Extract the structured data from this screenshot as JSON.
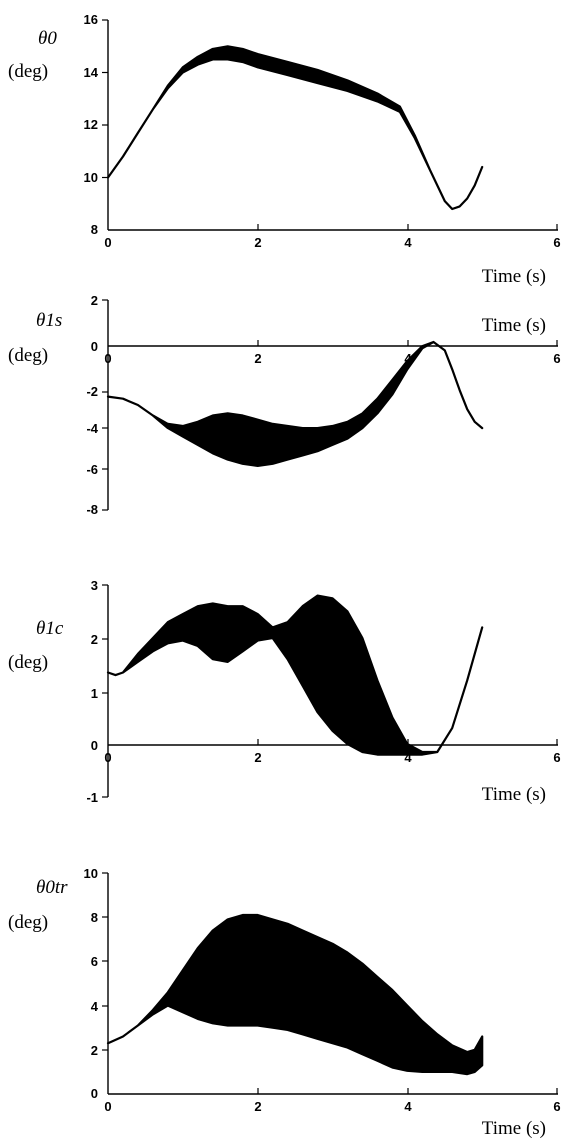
{
  "chart_data": [
    {
      "type": "line",
      "ylabel": "θ0",
      "yunit": "(deg)",
      "xlabel": "Time (s)",
      "xlim": [
        0,
        6
      ],
      "ylim": [
        8,
        16
      ],
      "xticks": [
        0,
        2,
        4,
        6
      ],
      "yticks": [
        8,
        10,
        12,
        14,
        16
      ],
      "grid": false,
      "x": [
        0.0,
        0.2,
        0.4,
        0.6,
        0.8,
        1.0,
        1.2,
        1.4,
        1.6,
        1.8,
        2.0,
        2.4,
        2.8,
        3.2,
        3.6,
        3.9,
        4.1,
        4.3,
        4.5,
        4.6,
        4.7,
        4.8,
        4.9,
        5.0
      ],
      "upper": [
        10.0,
        10.8,
        11.7,
        12.6,
        13.5,
        14.2,
        14.6,
        14.9,
        15.0,
        14.9,
        14.7,
        14.4,
        14.1,
        13.7,
        13.2,
        12.7,
        11.6,
        10.3,
        9.1,
        8.8,
        8.9,
        9.2,
        9.7,
        10.4
      ],
      "lower": [
        10.0,
        10.8,
        11.7,
        12.6,
        13.4,
        14.0,
        14.3,
        14.5,
        14.5,
        14.4,
        14.2,
        13.9,
        13.6,
        13.3,
        12.9,
        12.5,
        11.5,
        10.3,
        9.1,
        8.8,
        8.9,
        9.2,
        9.7,
        10.4
      ]
    },
    {
      "type": "line",
      "ylabel": "θ1s",
      "yunit": "(deg)",
      "xlabel": "Time (s)",
      "xlim": [
        0,
        6
      ],
      "ylim": [
        -8,
        2
      ],
      "xticks": [
        0,
        2,
        4,
        6
      ],
      "yticks": [
        2,
        0,
        -2,
        -4,
        -6,
        -8
      ],
      "grid": false,
      "x": [
        0.0,
        0.2,
        0.4,
        0.6,
        0.8,
        1.0,
        1.2,
        1.4,
        1.6,
        1.8,
        2.0,
        2.2,
        2.4,
        2.6,
        2.8,
        3.0,
        3.2,
        3.4,
        3.6,
        3.8,
        4.0,
        4.2,
        4.35,
        4.5,
        4.6,
        4.7,
        4.8,
        4.9,
        5.0
      ],
      "upper": [
        -2.6,
        -2.7,
        -3.0,
        -3.5,
        -3.9,
        -4.0,
        -3.8,
        -3.5,
        -3.4,
        -3.5,
        -3.7,
        -3.9,
        -4.0,
        -4.1,
        -4.1,
        -4.0,
        -3.8,
        -3.4,
        -2.7,
        -1.8,
        -0.9,
        -0.2,
        0.0,
        -0.4,
        -1.3,
        -2.3,
        -3.2,
        -3.8,
        -4.1
      ],
      "lower": [
        -2.6,
        -2.7,
        -3.0,
        -3.5,
        -4.1,
        -4.5,
        -4.9,
        -5.3,
        -5.6,
        -5.8,
        -5.9,
        -5.8,
        -5.6,
        -5.4,
        -5.2,
        -4.9,
        -4.6,
        -4.1,
        -3.4,
        -2.5,
        -1.3,
        -0.3,
        0.0,
        -0.4,
        -1.3,
        -2.3,
        -3.2,
        -3.8,
        -4.1
      ]
    },
    {
      "type": "line",
      "ylabel": "θ1c",
      "yunit": "(deg)",
      "xlabel": "Time (s)",
      "xlim": [
        0,
        6
      ],
      "ylim": [
        -1,
        3
      ],
      "xticks": [
        0,
        2,
        4,
        6
      ],
      "yticks": [
        3,
        2,
        1,
        0,
        -1
      ],
      "grid": false,
      "x": [
        0.0,
        0.1,
        0.2,
        0.4,
        0.6,
        0.8,
        1.0,
        1.2,
        1.4,
        1.6,
        1.8,
        2.0,
        2.2,
        2.4,
        2.6,
        2.8,
        3.0,
        3.2,
        3.4,
        3.6,
        3.8,
        4.0,
        4.2,
        4.4,
        4.6,
        4.8,
        5.0
      ],
      "upper": [
        1.35,
        1.3,
        1.35,
        1.7,
        2.0,
        2.3,
        2.45,
        2.6,
        2.65,
        2.6,
        2.6,
        2.45,
        2.2,
        2.3,
        2.6,
        2.8,
        2.75,
        2.5,
        2.0,
        1.2,
        0.5,
        0.0,
        -0.15,
        -0.15,
        0.3,
        1.2,
        2.2
      ],
      "lower": [
        1.35,
        1.3,
        1.35,
        1.55,
        1.75,
        1.9,
        1.95,
        1.85,
        1.6,
        1.55,
        1.75,
        1.95,
        2.0,
        1.6,
        1.1,
        0.6,
        0.25,
        0.0,
        -0.15,
        -0.2,
        -0.2,
        -0.2,
        -0.2,
        -0.15,
        0.3,
        1.2,
        2.2
      ]
    },
    {
      "type": "line",
      "ylabel": "θ0tr",
      "yunit": "(deg)",
      "xlabel": "Time (s)",
      "xlim": [
        0,
        6
      ],
      "ylim": [
        0,
        10
      ],
      "xticks": [
        0,
        2,
        4,
        6
      ],
      "yticks": [
        0,
        2,
        4,
        6,
        8,
        10
      ],
      "grid": false,
      "x": [
        0.0,
        0.2,
        0.4,
        0.6,
        0.8,
        1.0,
        1.2,
        1.4,
        1.6,
        1.8,
        2.0,
        2.2,
        2.4,
        2.6,
        2.8,
        3.0,
        3.2,
        3.4,
        3.6,
        3.8,
        4.0,
        4.2,
        4.4,
        4.6,
        4.8,
        4.9,
        5.0
      ],
      "upper": [
        2.3,
        2.6,
        3.1,
        3.8,
        4.6,
        5.6,
        6.6,
        7.4,
        7.9,
        8.1,
        8.1,
        7.9,
        7.7,
        7.4,
        7.1,
        6.8,
        6.4,
        5.9,
        5.3,
        4.7,
        4.0,
        3.3,
        2.7,
        2.2,
        1.9,
        2.0,
        2.6
      ],
      "lower": [
        2.3,
        2.6,
        3.1,
        3.6,
        4.0,
        3.7,
        3.4,
        3.2,
        3.1,
        3.1,
        3.1,
        3.0,
        2.9,
        2.7,
        2.5,
        2.3,
        2.1,
        1.8,
        1.5,
        1.2,
        1.05,
        1.0,
        1.0,
        1.0,
        0.9,
        1.0,
        1.3
      ]
    }
  ]
}
